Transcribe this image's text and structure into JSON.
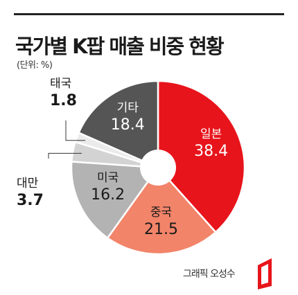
{
  "header": {
    "title": "국가별 K팝 매출 비중 현황",
    "unit": "(단위: %)"
  },
  "chart_data": {
    "type": "pie",
    "donut": true,
    "slices": [
      {
        "label": "일본",
        "value": 38.4,
        "color": "#e8141b",
        "text_color": "#ffffff"
      },
      {
        "label": "중국",
        "value": 21.5,
        "color": "#f2846a",
        "text_color": "#1a1a1a"
      },
      {
        "label": "미국",
        "value": 16.2,
        "color": "#b3b3b3",
        "text_color": "#1a1a1a"
      },
      {
        "label": "대만",
        "value": 3.7,
        "color": "#d3d3d3",
        "text_color": "#1a1a1a"
      },
      {
        "label": "태국",
        "value": 1.8,
        "color": "#ebebeb",
        "text_color": "#1a1a1a"
      },
      {
        "label": "기타",
        "value": 18.4,
        "color": "#555555",
        "text_color": "#ffffff"
      }
    ]
  },
  "footer": {
    "credit": "그래픽 오성수"
  }
}
